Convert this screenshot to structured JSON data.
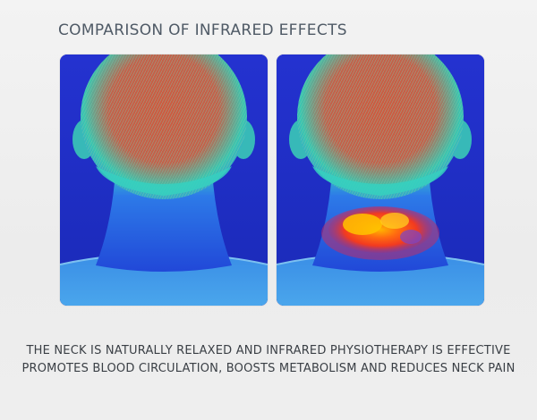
{
  "header": {
    "title": "COMPARISON OF INFRARED EFFECTS"
  },
  "panels": [
    {
      "state": "before",
      "image": "thermal-neck-back-view"
    },
    {
      "state": "after",
      "image": "thermal-neck-back-view-heated"
    }
  ],
  "caption": {
    "line1": "THE NECK IS NATURALLY RELAXED AND INFRARED PHYSIOTHERAPY IS EFFECTIVE",
    "line2": "PROMOTES BLOOD CIRCULATION, BOOSTS METABOLISM AND REDUCES NECK PAIN"
  },
  "colors": {
    "background": "#f1f1f1",
    "title_text": "#4f5a66",
    "caption_text": "#3a3f45",
    "thermal_cold": "#1b2cc4",
    "thermal_cool": "#2f6be8",
    "thermal_teal": "#2fc7b7",
    "thermal_warm": "#e0563a",
    "thermal_hot": "#ff3a10",
    "thermal_yellow": "#ffb400"
  }
}
